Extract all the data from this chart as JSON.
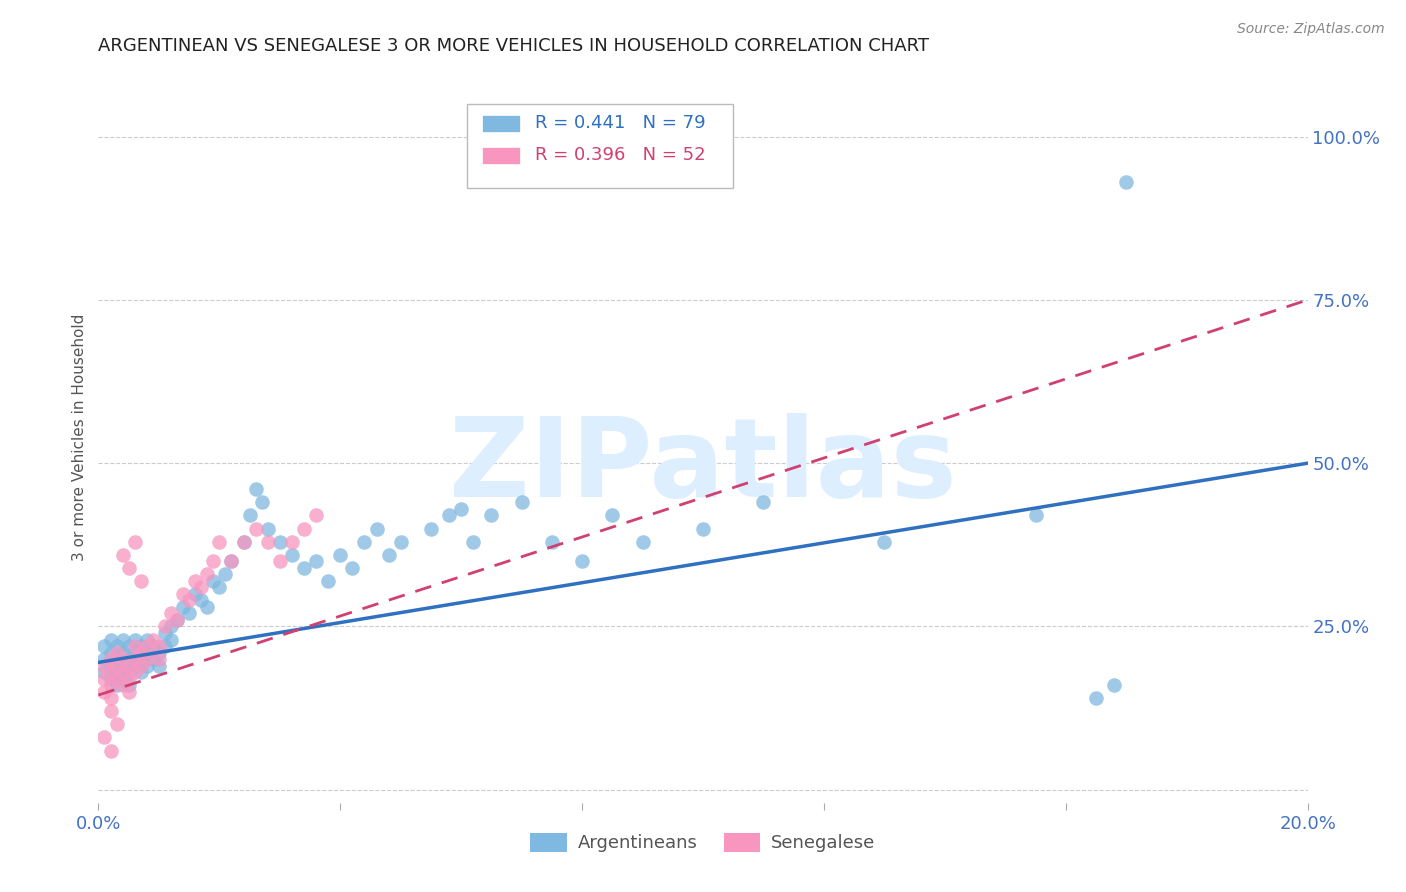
{
  "title": "ARGENTINEAN VS SENEGALESE 3 OR MORE VEHICLES IN HOUSEHOLD CORRELATION CHART",
  "source": "Source: ZipAtlas.com",
  "ylabel": "3 or more Vehicles in Household",
  "xlim": [
    0.0,
    0.2
  ],
  "ylim": [
    -0.02,
    1.1
  ],
  "argentinean_R": 0.441,
  "argentinean_N": 79,
  "senegalese_R": 0.396,
  "senegalese_N": 52,
  "argentinean_color": "#7fb8e0",
  "senegalese_color": "#f896c0",
  "argentinean_line_color": "#3070c0",
  "senegalese_line_color": "#d04070",
  "background_color": "#ffffff",
  "watermark": "ZIPatlas",
  "watermark_color": "#ddeeff",
  "title_fontsize": 13,
  "tick_color": "#4472c4",
  "arg_line_x0": 0.0,
  "arg_line_y0": 0.195,
  "arg_line_x1": 0.2,
  "arg_line_y1": 0.5,
  "sen_line_x0": 0.0,
  "sen_line_y0": 0.145,
  "sen_line_x1": 0.2,
  "sen_line_y1": 0.75,
  "argentinean_x": [
    0.001,
    0.001,
    0.001,
    0.002,
    0.002,
    0.002,
    0.002,
    0.003,
    0.003,
    0.003,
    0.003,
    0.004,
    0.004,
    0.004,
    0.004,
    0.005,
    0.005,
    0.005,
    0.005,
    0.006,
    0.006,
    0.006,
    0.007,
    0.007,
    0.007,
    0.008,
    0.008,
    0.008,
    0.009,
    0.009,
    0.01,
    0.01,
    0.011,
    0.011,
    0.012,
    0.012,
    0.013,
    0.014,
    0.015,
    0.016,
    0.017,
    0.018,
    0.019,
    0.02,
    0.021,
    0.022,
    0.024,
    0.025,
    0.026,
    0.027,
    0.028,
    0.03,
    0.032,
    0.034,
    0.036,
    0.038,
    0.04,
    0.042,
    0.044,
    0.046,
    0.048,
    0.05,
    0.055,
    0.058,
    0.06,
    0.062,
    0.065,
    0.07,
    0.075,
    0.08,
    0.085,
    0.09,
    0.1,
    0.11,
    0.13,
    0.155,
    0.165,
    0.168,
    0.17
  ],
  "argentinean_y": [
    0.2,
    0.22,
    0.18,
    0.19,
    0.21,
    0.17,
    0.23,
    0.2,
    0.18,
    0.22,
    0.16,
    0.21,
    0.19,
    0.17,
    0.23,
    0.2,
    0.18,
    0.22,
    0.16,
    0.21,
    0.19,
    0.23,
    0.2,
    0.18,
    0.22,
    0.21,
    0.19,
    0.23,
    0.2,
    0.22,
    0.19,
    0.21,
    0.24,
    0.22,
    0.25,
    0.23,
    0.26,
    0.28,
    0.27,
    0.3,
    0.29,
    0.28,
    0.32,
    0.31,
    0.33,
    0.35,
    0.38,
    0.42,
    0.46,
    0.44,
    0.4,
    0.38,
    0.36,
    0.34,
    0.35,
    0.32,
    0.36,
    0.34,
    0.38,
    0.4,
    0.36,
    0.38,
    0.4,
    0.42,
    0.43,
    0.38,
    0.42,
    0.44,
    0.38,
    0.35,
    0.42,
    0.38,
    0.4,
    0.44,
    0.38,
    0.42,
    0.14,
    0.16,
    0.93
  ],
  "senegalese_x": [
    0.001,
    0.001,
    0.001,
    0.002,
    0.002,
    0.002,
    0.002,
    0.003,
    0.003,
    0.003,
    0.004,
    0.004,
    0.004,
    0.005,
    0.005,
    0.005,
    0.006,
    0.006,
    0.006,
    0.007,
    0.007,
    0.008,
    0.008,
    0.009,
    0.01,
    0.01,
    0.011,
    0.012,
    0.013,
    0.014,
    0.015,
    0.016,
    0.017,
    0.018,
    0.019,
    0.02,
    0.022,
    0.024,
    0.026,
    0.028,
    0.03,
    0.032,
    0.034,
    0.036,
    0.004,
    0.005,
    0.006,
    0.007,
    0.002,
    0.003,
    0.001,
    0.002
  ],
  "senegalese_y": [
    0.17,
    0.19,
    0.15,
    0.18,
    0.16,
    0.2,
    0.14,
    0.19,
    0.17,
    0.21,
    0.18,
    0.16,
    0.2,
    0.19,
    0.17,
    0.15,
    0.22,
    0.2,
    0.18,
    0.21,
    0.19,
    0.22,
    0.2,
    0.23,
    0.22,
    0.2,
    0.25,
    0.27,
    0.26,
    0.3,
    0.29,
    0.32,
    0.31,
    0.33,
    0.35,
    0.38,
    0.35,
    0.38,
    0.4,
    0.38,
    0.35,
    0.38,
    0.4,
    0.42,
    0.36,
    0.34,
    0.38,
    0.32,
    0.12,
    0.1,
    0.08,
    0.06
  ]
}
